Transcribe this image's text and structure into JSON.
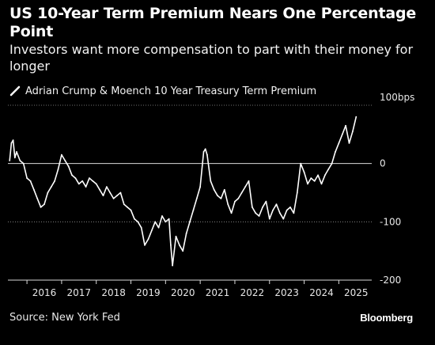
{
  "title": "US 10-Year Term Premium Nears One Percentage Point",
  "subtitle": "Investors want more compensation to part with their money for longer",
  "legend": {
    "label": "Adrian Crump & Moench 10 Year Treasury Term Premium",
    "color": "#ffffff"
  },
  "source": "Source: New York Fed",
  "brand": "Bloomberg",
  "colors": {
    "background": "#000000",
    "line": "#ffffff",
    "grid": "#d9d9d9"
  },
  "chart_data": {
    "type": "line",
    "ylabel": "",
    "xlabel": "",
    "y_unit": "bps",
    "ylim": [
      -200,
      100
    ],
    "y_ticks": [
      100,
      0,
      -100,
      -200
    ],
    "y_tick_labels": [
      "100bps",
      "0",
      "-100",
      "-200"
    ],
    "x_ticks": [
      2016,
      2017,
      2018,
      2019,
      2020,
      2021,
      2022,
      2023,
      2024,
      2025
    ],
    "x_tick_labels": [
      "2016",
      "2017",
      "2018",
      "2019",
      "2020",
      "2021",
      "2022",
      "2023",
      "2024",
      "2025"
    ],
    "xlim": [
      2015.45,
      2025.95
    ],
    "grid": "horizontal",
    "series": [
      {
        "name": "Adrian Crump & Moench 10 Year Treasury Term Premium",
        "x": [
          2015.5,
          2015.55,
          2015.6,
          2015.65,
          2015.7,
          2015.8,
          2015.9,
          2016.0,
          2016.1,
          2016.2,
          2016.3,
          2016.4,
          2016.5,
          2016.6,
          2016.7,
          2016.8,
          2016.9,
          2017.0,
          2017.1,
          2017.2,
          2017.3,
          2017.4,
          2017.5,
          2017.6,
          2017.7,
          2017.8,
          2017.9,
          2018.0,
          2018.1,
          2018.2,
          2018.3,
          2018.4,
          2018.5,
          2018.6,
          2018.7,
          2018.8,
          2018.9,
          2019.0,
          2019.1,
          2019.2,
          2019.3,
          2019.4,
          2019.5,
          2019.6,
          2019.7,
          2019.8,
          2019.9,
          2020.0,
          2020.1,
          2020.15,
          2020.2,
          2020.25,
          2020.3,
          2020.4,
          2020.5,
          2020.6,
          2020.7,
          2020.8,
          2020.9,
          2021.0,
          2021.1,
          2021.15,
          2021.2,
          2021.3,
          2021.4,
          2021.5,
          2021.6,
          2021.7,
          2021.8,
          2021.9,
          2022.0,
          2022.1,
          2022.2,
          2022.3,
          2022.4,
          2022.5,
          2022.6,
          2022.7,
          2022.8,
          2022.9,
          2023.0,
          2023.1,
          2023.2,
          2023.3,
          2023.4,
          2023.5,
          2023.6,
          2023.7,
          2023.8,
          2023.9,
          2024.0,
          2024.1,
          2024.2,
          2024.3,
          2024.4,
          2024.5,
          2024.6,
          2024.7,
          2024.8,
          2024.9,
          2025.0,
          2025.1,
          2025.2,
          2025.3,
          2025.4,
          2025.5
        ],
        "values": [
          5,
          35,
          40,
          10,
          20,
          5,
          0,
          -25,
          -30,
          -45,
          -60,
          -75,
          -70,
          -50,
          -40,
          -30,
          -10,
          15,
          5,
          -5,
          -20,
          -25,
          -35,
          -30,
          -40,
          -25,
          -30,
          -35,
          -45,
          -55,
          -40,
          -50,
          -60,
          -55,
          -50,
          -70,
          -75,
          -80,
          -95,
          -100,
          -110,
          -140,
          -130,
          -115,
          -100,
          -110,
          -90,
          -100,
          -95,
          -140,
          -175,
          -150,
          -125,
          -140,
          -150,
          -120,
          -100,
          -80,
          -60,
          -40,
          20,
          25,
          15,
          -30,
          -45,
          -55,
          -60,
          -45,
          -70,
          -85,
          -65,
          -60,
          -50,
          -40,
          -30,
          -75,
          -85,
          -90,
          -75,
          -65,
          -95,
          -80,
          -70,
          -85,
          -95,
          -80,
          -75,
          -85,
          -50,
          0,
          -15,
          -35,
          -25,
          -30,
          -20,
          -35,
          -20,
          -10,
          0,
          20,
          35,
          50,
          65,
          35,
          55,
          80
        ]
      }
    ]
  }
}
